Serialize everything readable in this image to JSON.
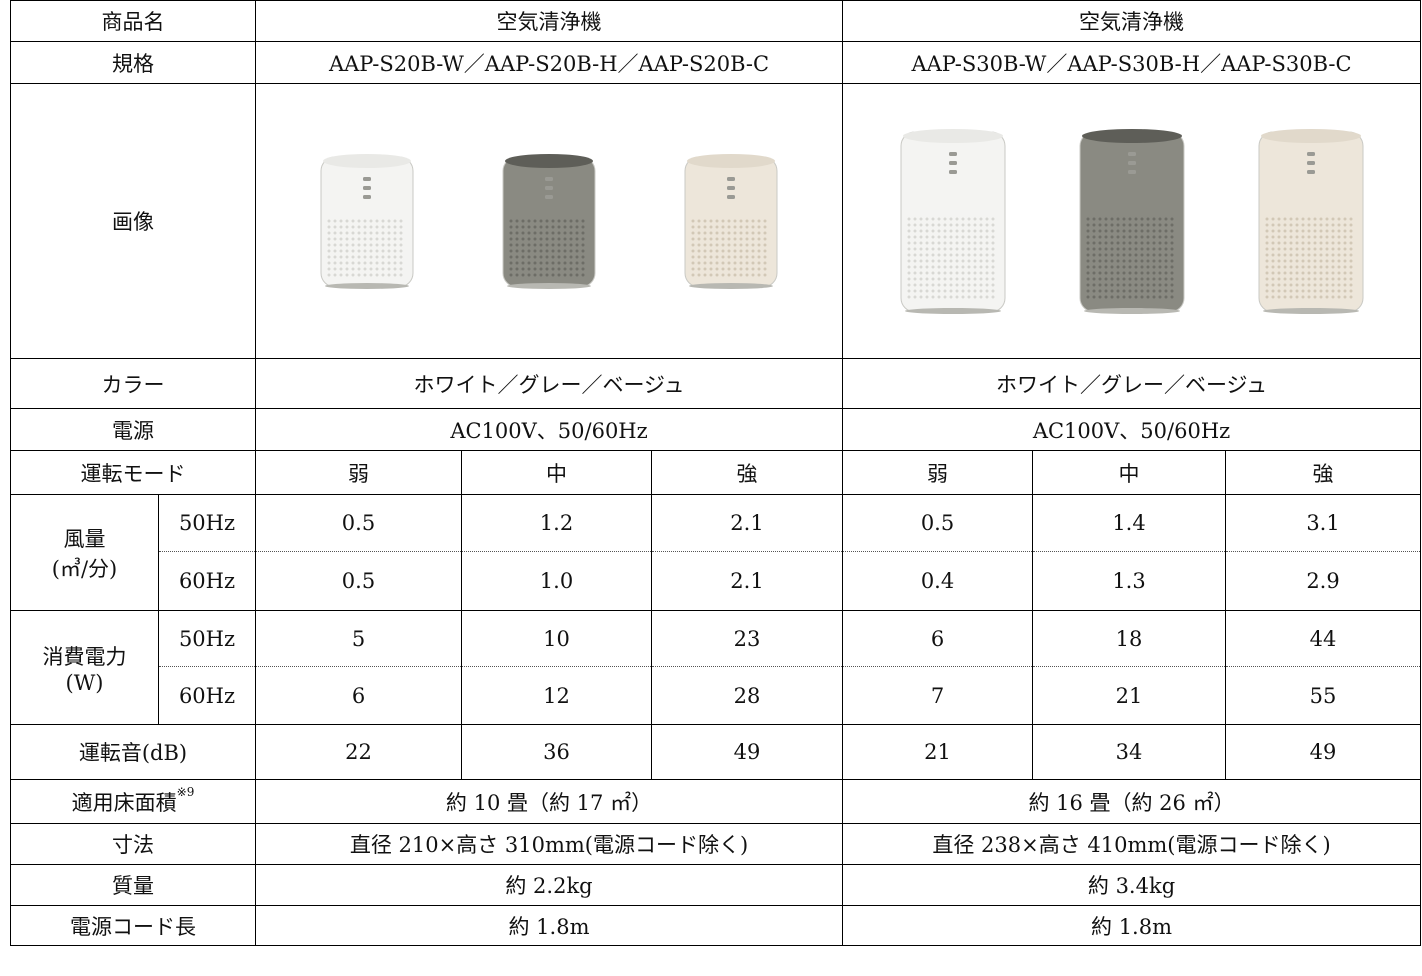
{
  "header": {
    "product_label": "商品名",
    "product_a": "空気清浄機",
    "product_b": "空気清浄機"
  },
  "spec": {
    "label": "規格",
    "a": "AAP-S20B-W／AAP-S20B-H／AAP-S20B-C",
    "b": "AAP-S30B-W／AAP-S30B-H／AAP-S30B-C"
  },
  "image": {
    "label": "画像",
    "a_units": [
      {
        "name": "white",
        "body": "#f4f4f2",
        "grille": "#d8d8d4",
        "top": "#e9e9e6"
      },
      {
        "name": "gray",
        "body": "#8a8a82",
        "grille": "#6d6d66",
        "top": "#5e5e58"
      },
      {
        "name": "beige",
        "body": "#ede6da",
        "grille": "#d2c8b6",
        "top": "#e1d9cb"
      }
    ],
    "b_units": [
      {
        "name": "white",
        "body": "#f4f4f2",
        "grille": "#d8d8d4",
        "top": "#e9e9e6"
      },
      {
        "name": "gray",
        "body": "#8a8a82",
        "grille": "#6d6d66",
        "top": "#5e5e58"
      },
      {
        "name": "beige",
        "body": "#ede6da",
        "grille": "#d2c8b6",
        "top": "#e1d9cb"
      }
    ]
  },
  "color": {
    "label": "カラー",
    "a": "ホワイト／グレー／ベージュ",
    "b": "ホワイト／グレー／ベージュ"
  },
  "power": {
    "label": "電源",
    "a": "AC100V、50/60Hz",
    "b": "AC100V、50/60Hz"
  },
  "mode": {
    "label": "運転モード",
    "a": [
      "弱",
      "中",
      "強"
    ],
    "b": [
      "弱",
      "中",
      "強"
    ]
  },
  "airflow": {
    "label": "風量",
    "unit": "(㎥/分)",
    "hz50": "50Hz",
    "hz60": "60Hz",
    "a50": [
      "0.5",
      "1.2",
      "2.1"
    ],
    "b50": [
      "0.5",
      "1.4",
      "3.1"
    ],
    "a60": [
      "0.5",
      "1.0",
      "2.1"
    ],
    "b60": [
      "0.4",
      "1.3",
      "2.9"
    ]
  },
  "consumption": {
    "label": "消費電力",
    "unit": "(W)",
    "hz50": "50Hz",
    "hz60": "60Hz",
    "a50": [
      "5",
      "10",
      "23"
    ],
    "b50": [
      "6",
      "18",
      "44"
    ],
    "a60": [
      "6",
      "12",
      "28"
    ],
    "b60": [
      "7",
      "21",
      "55"
    ]
  },
  "noise": {
    "label": "運転音(dB)",
    "a": [
      "22",
      "36",
      "49"
    ],
    "b": [
      "21",
      "34",
      "49"
    ]
  },
  "floor": {
    "label": "適用床面積",
    "note": "※9",
    "a": "約 10 畳（約 17 ㎡）",
    "b": "約 16 畳（約 26 ㎡）"
  },
  "size": {
    "label": "寸法",
    "a": "直径 210×高さ 310mm(電源コード除く)",
    "b": "直径 238×高さ 410mm(電源コード除く)"
  },
  "weight": {
    "label": "質量",
    "a": "約 2.2kg",
    "b": "約 3.4kg"
  },
  "cord": {
    "label": "電源コード長",
    "a": "約 1.8m",
    "b": "約 1.8m"
  }
}
